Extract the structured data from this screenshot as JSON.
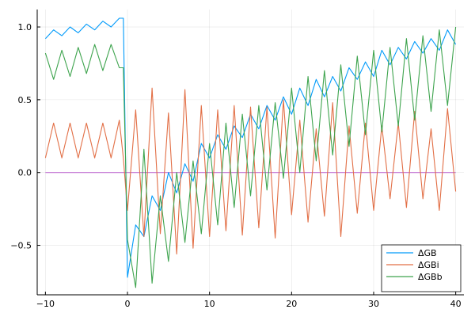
{
  "chart_data": {
    "type": "line",
    "xlim": [
      -11,
      41
    ],
    "ylim": [
      -0.84,
      1.12
    ],
    "xticks": [
      {
        "value": -10,
        "label": "−10"
      },
      {
        "value": 0,
        "label": "0"
      },
      {
        "value": 10,
        "label": "10"
      },
      {
        "value": 20,
        "label": "20"
      },
      {
        "value": 30,
        "label": "30"
      },
      {
        "value": 40,
        "label": "40"
      }
    ],
    "yticks": [
      {
        "value": -0.5,
        "label": "−0.5"
      },
      {
        "value": 0,
        "label": "0.0"
      },
      {
        "value": 0.5,
        "label": "0.5"
      },
      {
        "value": 1.0,
        "label": "1.0"
      }
    ],
    "grid": true,
    "legend_position": "bottom-right",
    "series": [
      {
        "name": "ΔGB",
        "color": "#009AFA",
        "in_legend": true,
        "points": [
          [
            -10,
            0.92
          ],
          [
            -9,
            0.98
          ],
          [
            -8,
            0.94
          ],
          [
            -7,
            1.0
          ],
          [
            -6,
            0.96
          ],
          [
            -5,
            1.02
          ],
          [
            -4,
            0.98
          ],
          [
            -3,
            1.04
          ],
          [
            -2,
            1.0
          ],
          [
            -1,
            1.06
          ],
          [
            -0.5,
            1.06
          ],
          [
            0,
            -0.72
          ],
          [
            1,
            -0.36
          ],
          [
            2,
            -0.44
          ],
          [
            3,
            -0.16
          ],
          [
            4,
            -0.26
          ],
          [
            5,
            0.0
          ],
          [
            6,
            -0.14
          ],
          [
            7,
            0.06
          ],
          [
            8,
            -0.06
          ],
          [
            9,
            0.2
          ],
          [
            10,
            0.1
          ],
          [
            11,
            0.26
          ],
          [
            12,
            0.16
          ],
          [
            13,
            0.32
          ],
          [
            14,
            0.24
          ],
          [
            15,
            0.4
          ],
          [
            16,
            0.3
          ],
          [
            17,
            0.46
          ],
          [
            18,
            0.36
          ],
          [
            19,
            0.52
          ],
          [
            20,
            0.4
          ],
          [
            21,
            0.58
          ],
          [
            22,
            0.46
          ],
          [
            23,
            0.64
          ],
          [
            24,
            0.52
          ],
          [
            25,
            0.66
          ],
          [
            26,
            0.56
          ],
          [
            27,
            0.72
          ],
          [
            28,
            0.64
          ],
          [
            29,
            0.76
          ],
          [
            30,
            0.66
          ],
          [
            31,
            0.84
          ],
          [
            32,
            0.74
          ],
          [
            33,
            0.86
          ],
          [
            34,
            0.78
          ],
          [
            35,
            0.9
          ],
          [
            36,
            0.82
          ],
          [
            37,
            0.92
          ],
          [
            38,
            0.84
          ],
          [
            39,
            0.98
          ],
          [
            40,
            0.88
          ]
        ]
      },
      {
        "name": "ΔGBi",
        "color": "#E26F46",
        "in_legend": true,
        "points": [
          [
            -10,
            0.1
          ],
          [
            -9,
            0.34
          ],
          [
            -8,
            0.1
          ],
          [
            -7,
            0.34
          ],
          [
            -6,
            0.1
          ],
          [
            -5,
            0.34
          ],
          [
            -4,
            0.1
          ],
          [
            -3,
            0.34
          ],
          [
            -2,
            0.1
          ],
          [
            -1,
            0.36
          ],
          [
            -0.5,
            0.1
          ],
          [
            0,
            -0.26
          ],
          [
            1,
            0.43
          ],
          [
            2,
            -0.44
          ],
          [
            3,
            0.58
          ],
          [
            4,
            -0.42
          ],
          [
            5,
            0.41
          ],
          [
            6,
            -0.56
          ],
          [
            7,
            0.57
          ],
          [
            8,
            -0.52
          ],
          [
            9,
            0.46
          ],
          [
            10,
            -0.44
          ],
          [
            11,
            0.43
          ],
          [
            12,
            -0.4
          ],
          [
            13,
            0.46
          ],
          [
            14,
            -0.43
          ],
          [
            15,
            0.45
          ],
          [
            16,
            -0.38
          ],
          [
            17,
            0.45
          ],
          [
            18,
            -0.45
          ],
          [
            19,
            0.5
          ],
          [
            20,
            -0.29
          ],
          [
            21,
            0.36
          ],
          [
            22,
            -0.34
          ],
          [
            23,
            0.3
          ],
          [
            24,
            -0.3
          ],
          [
            25,
            0.48
          ],
          [
            26,
            -0.44
          ],
          [
            27,
            0.32
          ],
          [
            28,
            -0.28
          ],
          [
            29,
            0.34
          ],
          [
            30,
            -0.26
          ],
          [
            31,
            0.32
          ],
          [
            32,
            -0.18
          ],
          [
            33,
            0.34
          ],
          [
            34,
            -0.24
          ],
          [
            35,
            0.42
          ],
          [
            36,
            -0.18
          ],
          [
            37,
            0.3
          ],
          [
            38,
            -0.26
          ],
          [
            39,
            0.44
          ],
          [
            40,
            -0.13
          ]
        ]
      },
      {
        "name": "ΔGBb",
        "color": "#3EA44E",
        "in_legend": true,
        "points": [
          [
            -10,
            0.82
          ],
          [
            -9,
            0.64
          ],
          [
            -8,
            0.84
          ],
          [
            -7,
            0.66
          ],
          [
            -6,
            0.86
          ],
          [
            -5,
            0.68
          ],
          [
            -4,
            0.88
          ],
          [
            -3,
            0.7
          ],
          [
            -2,
            0.88
          ],
          [
            -1,
            0.72
          ],
          [
            -0.5,
            0.72
          ],
          [
            0,
            -0.46
          ],
          [
            1,
            -0.79
          ],
          [
            2,
            0.16
          ],
          [
            3,
            -0.76
          ],
          [
            4,
            -0.16
          ],
          [
            5,
            -0.61
          ],
          [
            6,
            0.0
          ],
          [
            7,
            -0.48
          ],
          [
            8,
            0.08
          ],
          [
            9,
            -0.42
          ],
          [
            10,
            0.2
          ],
          [
            11,
            -0.36
          ],
          [
            12,
            0.34
          ],
          [
            13,
            -0.24
          ],
          [
            14,
            0.4
          ],
          [
            15,
            -0.16
          ],
          [
            16,
            0.46
          ],
          [
            17,
            -0.12
          ],
          [
            18,
            0.48
          ],
          [
            19,
            -0.04
          ],
          [
            20,
            0.58
          ],
          [
            21,
            0.0
          ],
          [
            22,
            0.66
          ],
          [
            23,
            0.08
          ],
          [
            24,
            0.7
          ],
          [
            25,
            0.12
          ],
          [
            26,
            0.74
          ],
          [
            27,
            0.18
          ],
          [
            28,
            0.8
          ],
          [
            29,
            0.26
          ],
          [
            30,
            0.84
          ],
          [
            31,
            0.28
          ],
          [
            32,
            0.86
          ],
          [
            33,
            0.32
          ],
          [
            34,
            0.92
          ],
          [
            35,
            0.36
          ],
          [
            36,
            0.94
          ],
          [
            37,
            0.42
          ],
          [
            38,
            0.98
          ],
          [
            39,
            0.46
          ],
          [
            40,
            1.0
          ]
        ]
      },
      {
        "name": "",
        "color": "#C271D2",
        "in_legend": false,
        "points": [
          [
            -10,
            0.0
          ],
          [
            40,
            0.0
          ]
        ]
      }
    ]
  }
}
